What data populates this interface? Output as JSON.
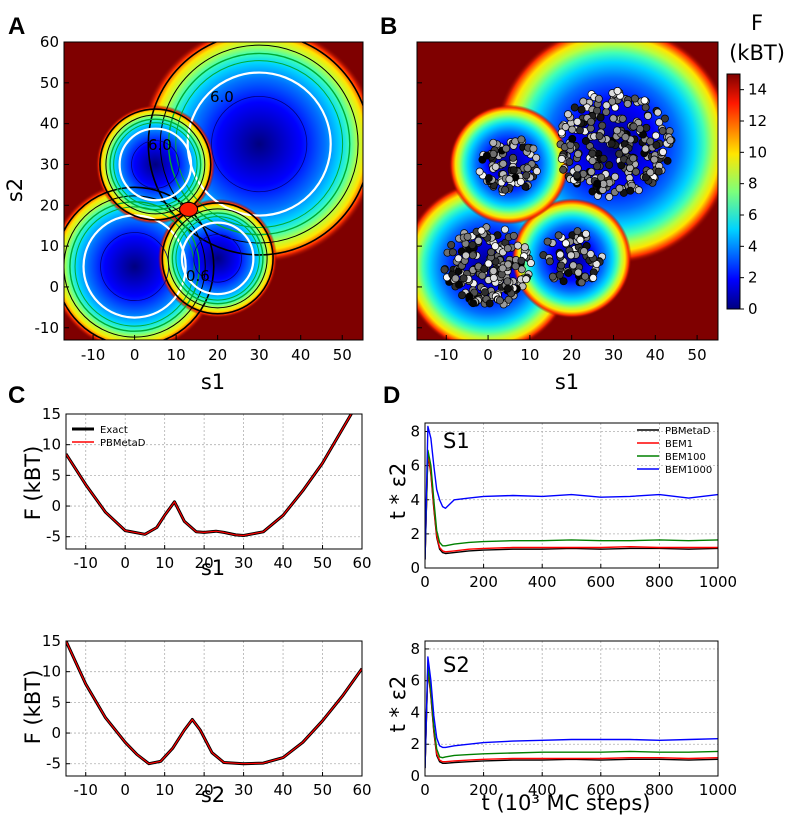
{
  "panels": [
    "A",
    "B",
    "C",
    "D"
  ],
  "colorbar": {
    "title": "F",
    "unit": "(kBT)",
    "ticks": [
      "0",
      "2",
      "4",
      "6",
      "8",
      "10",
      "12",
      "14"
    ],
    "range": [
      0,
      15
    ],
    "colormap": "jet"
  },
  "colors": {
    "exact": "#000000",
    "pbmetad": "#ff0000",
    "bem1": "#ff0000",
    "bem100": "#008000",
    "bem1000": "#0000ff",
    "background": "#7f0000"
  },
  "chart_data": [
    {
      "panel": "A",
      "type": "heatmap",
      "xlabel": "s1",
      "ylabel": "s2",
      "xlim": [
        -17,
        55
      ],
      "ylim": [
        -13,
        60
      ],
      "xticks": [
        "-10",
        "0",
        "10",
        "20",
        "30",
        "40",
        "50"
      ],
      "yticks": [
        "-10",
        "0",
        "10",
        "20",
        "30",
        "40",
        "50",
        "60"
      ],
      "basins": [
        {
          "center": [
            30,
            35
          ],
          "radius": 14
        },
        {
          "center": [
            0,
            5
          ],
          "radius": 10
        },
        {
          "center": [
            20,
            7
          ],
          "radius": 7
        },
        {
          "center": [
            5,
            30
          ],
          "radius": 7
        }
      ],
      "contour_labels": [
        "6.0",
        "6.0",
        "0.6"
      ]
    },
    {
      "panel": "B",
      "type": "scatter",
      "xlabel": "s1",
      "ylabel": "",
      "xlim": [
        -17,
        55
      ],
      "ylim": [
        -13,
        60
      ],
      "xticks": [
        "-10",
        "0",
        "10",
        "20",
        "30",
        "40",
        "50"
      ],
      "note": "free-energy map with sampled points (white to black)"
    },
    {
      "panel": "C-top",
      "type": "line",
      "xlabel": "s1",
      "ylabel": "F (kBT)",
      "xlim": [
        -15,
        60
      ],
      "ylim": [
        -7,
        15
      ],
      "xticks": [
        "-10",
        "0",
        "10",
        "20",
        "30",
        "40",
        "50",
        "60"
      ],
      "yticks": [
        "-5",
        "0",
        "5",
        "10",
        "15"
      ],
      "legend": [
        "Exact",
        "PBMetaD"
      ],
      "x": [
        -15,
        -10,
        -5,
        0,
        5,
        8,
        10,
        12.5,
        15,
        18,
        20,
        23,
        25,
        28,
        30,
        35,
        40,
        45,
        50,
        55,
        60
      ],
      "series": [
        {
          "name": "Exact",
          "values": [
            8.5,
            3.5,
            -1.0,
            -4.0,
            -4.6,
            -3.5,
            -1.5,
            0.7,
            -2.5,
            -4.2,
            -4.3,
            -4.1,
            -4.3,
            -4.7,
            -4.8,
            -4.2,
            -1.5,
            2.5,
            7.0,
            12.5,
            18.0
          ]
        },
        {
          "name": "PBMetaD",
          "values": [
            8.5,
            3.5,
            -1.0,
            -4.0,
            -4.6,
            -3.5,
            -1.5,
            0.7,
            -2.5,
            -4.2,
            -4.3,
            -4.1,
            -4.3,
            -4.7,
            -4.8,
            -4.2,
            -1.5,
            2.5,
            7.0,
            12.5,
            18.0
          ]
        }
      ]
    },
    {
      "panel": "C-bottom",
      "type": "line",
      "xlabel": "s2",
      "ylabel": "F (kBT)",
      "xlim": [
        -15,
        60
      ],
      "ylim": [
        -7,
        15
      ],
      "xticks": [
        "-10",
        "0",
        "10",
        "20",
        "30",
        "40",
        "50",
        "60"
      ],
      "yticks": [
        "-5",
        "0",
        "5",
        "10",
        "15"
      ],
      "x": [
        -15,
        -10,
        -5,
        0,
        3,
        6,
        9,
        12,
        15,
        17,
        19,
        22,
        25,
        30,
        35,
        40,
        45,
        50,
        55,
        60
      ],
      "series": [
        {
          "name": "Exact",
          "values": [
            15,
            8.0,
            2.5,
            -1.5,
            -3.5,
            -5.0,
            -4.6,
            -2.5,
            0.5,
            2.2,
            0.5,
            -3.2,
            -4.8,
            -5.0,
            -4.9,
            -4.0,
            -1.5,
            2.0,
            6.0,
            10.5
          ]
        },
        {
          "name": "PBMetaD",
          "values": [
            15,
            8.0,
            2.5,
            -1.5,
            -3.5,
            -5.0,
            -4.6,
            -2.5,
            0.5,
            2.2,
            0.5,
            -3.2,
            -4.8,
            -5.0,
            -4.9,
            -4.0,
            -1.5,
            2.0,
            6.0,
            10.5
          ]
        }
      ]
    },
    {
      "panel": "D-top",
      "type": "line",
      "annotation": "S1",
      "xlabel": "",
      "ylabel": "t * ε2",
      "xlim": [
        0,
        1000
      ],
      "ylim": [
        0,
        8.5
      ],
      "xticks": [
        "0",
        "200",
        "400",
        "600",
        "800",
        "1000"
      ],
      "yticks": [
        "0",
        "2",
        "4",
        "6",
        "8"
      ],
      "legend": [
        "PBMetaD",
        "BEM1",
        "BEM100",
        "BEM1000"
      ],
      "x": [
        0,
        10,
        20,
        30,
        40,
        50,
        60,
        70,
        100,
        150,
        200,
        300,
        400,
        500,
        600,
        700,
        800,
        900,
        1000
      ],
      "series": [
        {
          "name": "PBMetaD",
          "values": [
            0.5,
            6.7,
            5.5,
            3.5,
            1.8,
            1.1,
            0.9,
            0.85,
            0.9,
            1.0,
            1.05,
            1.1,
            1.1,
            1.15,
            1.1,
            1.15,
            1.15,
            1.1,
            1.15
          ]
        },
        {
          "name": "BEM1",
          "values": [
            0.5,
            6.8,
            5.6,
            3.6,
            1.9,
            1.2,
            1.0,
            0.95,
            1.0,
            1.1,
            1.15,
            1.2,
            1.2,
            1.2,
            1.2,
            1.25,
            1.2,
            1.2,
            1.2
          ]
        },
        {
          "name": "BEM100",
          "values": [
            0.5,
            6.9,
            6.0,
            4.0,
            2.2,
            1.5,
            1.3,
            1.3,
            1.4,
            1.5,
            1.55,
            1.6,
            1.6,
            1.65,
            1.6,
            1.6,
            1.65,
            1.6,
            1.65
          ]
        },
        {
          "name": "BEM1000",
          "values": [
            0.5,
            8.3,
            7.6,
            6.0,
            4.6,
            4.0,
            3.6,
            3.5,
            4.0,
            4.1,
            4.2,
            4.25,
            4.2,
            4.3,
            4.15,
            4.2,
            4.3,
            4.1,
            4.3
          ]
        }
      ]
    },
    {
      "panel": "D-bottom",
      "type": "line",
      "annotation": "S2",
      "xlabel": "t (10³ MC steps)",
      "ylabel": "t * ε2",
      "xlim": [
        0,
        1000
      ],
      "ylim": [
        0,
        8.5
      ],
      "xticks": [
        "0",
        "200",
        "400",
        "600",
        "800",
        "1000"
      ],
      "yticks": [
        "0",
        "2",
        "4",
        "6",
        "8"
      ],
      "x": [
        0,
        10,
        20,
        30,
        40,
        50,
        60,
        70,
        100,
        150,
        200,
        300,
        400,
        500,
        600,
        700,
        800,
        900,
        1000
      ],
      "series": [
        {
          "name": "PBMetaD",
          "values": [
            0.5,
            6.8,
            5.0,
            2.8,
            1.3,
            0.9,
            0.8,
            0.8,
            0.85,
            0.9,
            0.95,
            1.0,
            1.0,
            1.05,
            1.0,
            1.05,
            1.05,
            1.0,
            1.05
          ]
        },
        {
          "name": "BEM1",
          "values": [
            0.5,
            6.9,
            5.1,
            2.9,
            1.4,
            1.0,
            0.9,
            0.9,
            0.95,
            1.0,
            1.05,
            1.1,
            1.1,
            1.1,
            1.1,
            1.15,
            1.15,
            1.1,
            1.15
          ]
        },
        {
          "name": "BEM100",
          "values": [
            0.5,
            7.0,
            5.3,
            3.1,
            1.7,
            1.2,
            1.15,
            1.2,
            1.3,
            1.35,
            1.4,
            1.45,
            1.5,
            1.5,
            1.5,
            1.55,
            1.5,
            1.5,
            1.55
          ]
        },
        {
          "name": "BEM1000",
          "values": [
            0.5,
            7.5,
            6.0,
            3.8,
            2.4,
            1.9,
            1.8,
            1.8,
            1.9,
            2.0,
            2.1,
            2.2,
            2.25,
            2.3,
            2.3,
            2.3,
            2.25,
            2.3,
            2.35
          ]
        }
      ]
    }
  ]
}
